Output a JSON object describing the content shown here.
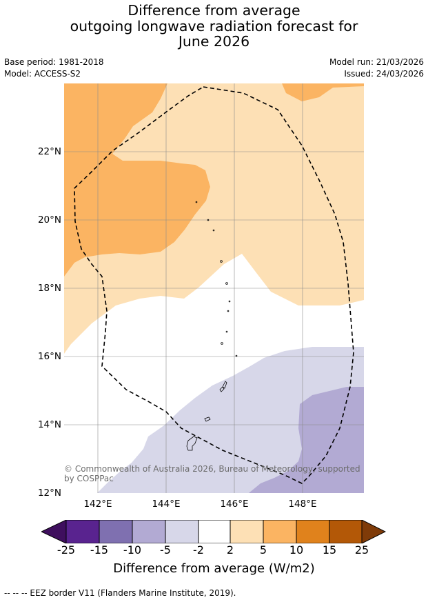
{
  "title": {
    "line1": "Difference from average",
    "line2": "outgoing longwave radiation forecast for",
    "line3": "June 2026"
  },
  "meta": {
    "base_period": "Base period: 1981-2018",
    "model": "Model: ACCESS-S2",
    "model_run": "Model run: 21/03/2026",
    "issued": "Issued: 24/03/2026"
  },
  "map": {
    "lat_labels": [
      "22°N",
      "20°N",
      "18°N",
      "16°N",
      "14°N",
      "12°N"
    ],
    "lon_labels": [
      "142°E",
      "144°E",
      "146°E",
      "148°E"
    ],
    "copyright": "© Commonwealth of Australia 2026, Bureau of Meteorology, supported by COSPPac",
    "colors": {
      "orange_5_10": "#fbb462",
      "orange_2_5": "#fde0b5",
      "neutral": "#ffffff",
      "purple_m5_m2": "#d7d7e9",
      "purple_m10_m5": "#b2aad3"
    }
  },
  "colorbar": {
    "tick_labels": [
      "-25",
      "-15",
      "-10",
      "-5",
      "-2",
      "2",
      "5",
      "10",
      "15",
      "25"
    ],
    "colors": [
      "#3f0f5e",
      "#59238f",
      "#7f70b0",
      "#b2aad3",
      "#d7d7e9",
      "#ffffff",
      "#fde0b5",
      "#fbb462",
      "#e0821c",
      "#b35807",
      "#7f3b08"
    ],
    "label": "Difference from average (W/m2)"
  },
  "footer": "--  --  -- EEZ border V11 (Flanders Marine Institute, 2019)."
}
